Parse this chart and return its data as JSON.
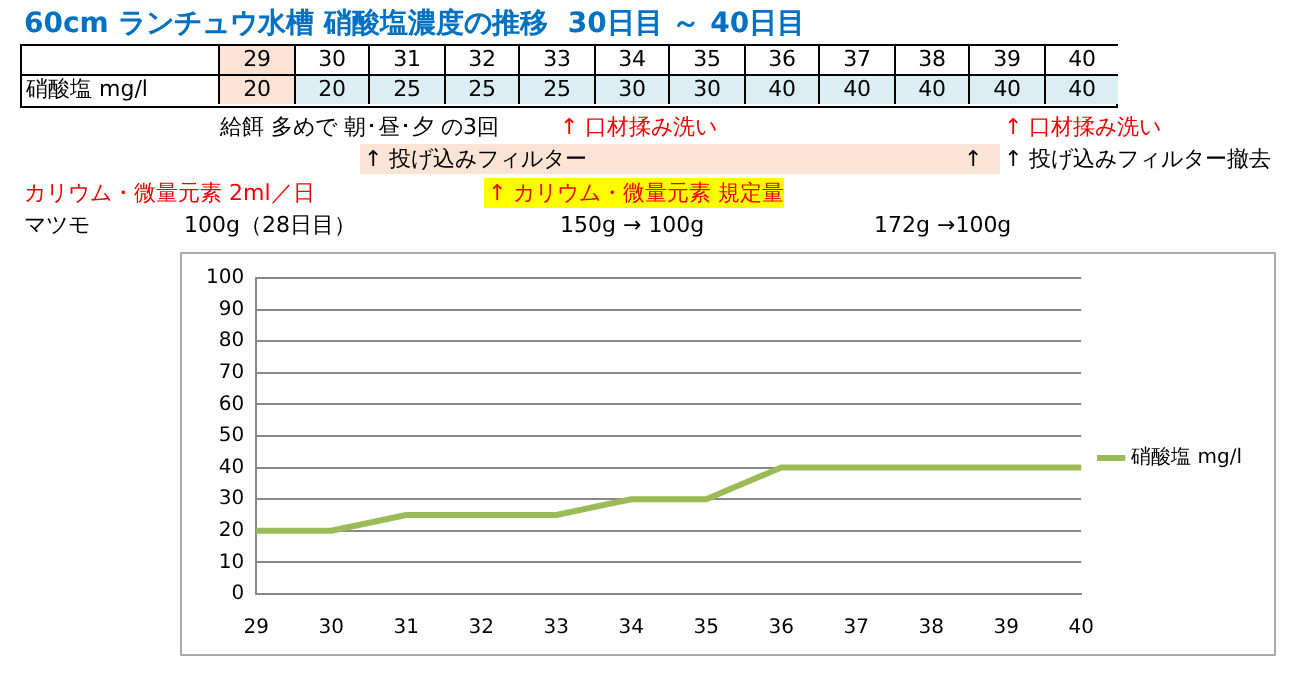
{
  "chart_data": {
    "type": "line",
    "title": "60cm ランチュウ水槽 硝酸塩濃度の推移  30日目 ～ 40日目",
    "categories": [
      "29",
      "30",
      "31",
      "32",
      "33",
      "34",
      "35",
      "36",
      "37",
      "38",
      "39",
      "40"
    ],
    "series": [
      {
        "name": "硝酸塩 mg/l",
        "color": "#9bbb59",
        "values": [
          20,
          20,
          25,
          25,
          25,
          30,
          30,
          40,
          40,
          40,
          40,
          40
        ]
      }
    ],
    "ylim": [
      0,
      100
    ],
    "yticks": [
      0,
      10,
      20,
      30,
      40,
      50,
      60,
      70,
      80,
      90,
      100
    ],
    "grid": "y",
    "legend": "right",
    "marker": "none",
    "line_style": "solid",
    "data_labels": true,
    "annotations": [
      "給餌 多めで 朝･昼･夕 の3回",
      "↑ 口材揉み洗い",
      "↑ 口材揉み洗い",
      "↑ 投げ込みフィルター",
      "↑",
      "↑ 投げ込みフィルター撤去",
      "カリウム・微量元素 2ml／日",
      "↑ カリウム・微量元素 規定量",
      "マツモ",
      "100g（28日目）",
      "150g → 100g",
      "172g →100g"
    ]
  }
}
